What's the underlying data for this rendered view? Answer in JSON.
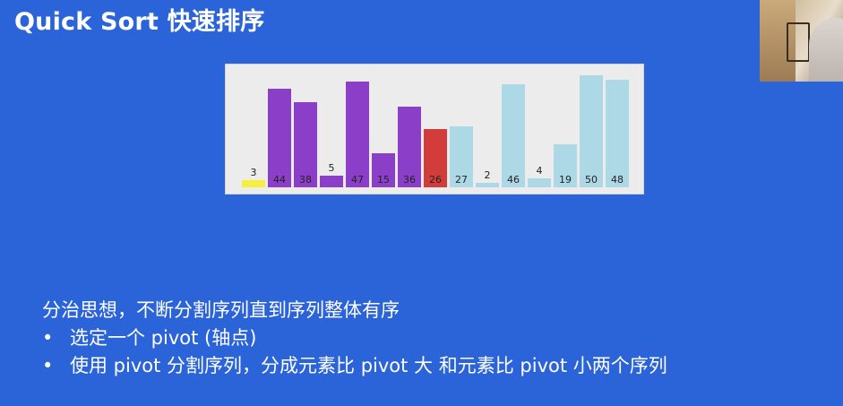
{
  "slide": {
    "title": "Quick Sort 快速排序"
  },
  "chart_data": {
    "type": "bar",
    "categories": [
      "3",
      "44",
      "38",
      "5",
      "47",
      "15",
      "36",
      "26",
      "27",
      "2",
      "46",
      "4",
      "19",
      "50",
      "48"
    ],
    "values": [
      3,
      44,
      38,
      5,
      47,
      15,
      36,
      26,
      27,
      2,
      46,
      4,
      19,
      50,
      48
    ],
    "bar_colors": [
      "#f7ef3e",
      "#8b3fc8",
      "#8b3fc8",
      "#8b3fc8",
      "#8b3fc8",
      "#8b3fc8",
      "#8b3fc8",
      "#d23d3b",
      "#add8e6",
      "#add8e6",
      "#add8e6",
      "#add8e6",
      "#add8e6",
      "#add8e6",
      "#add8e6"
    ],
    "ylim": [
      0,
      50
    ]
  },
  "notes": {
    "intro": "分治思想，不断分割序列直到序列整体有序",
    "bullets": [
      "选定一个 pivot (轴点)",
      "使用 pivot 分割序列，分成元素比 pivot 大 和元素比 pivot 小两个序列"
    ],
    "bullet_symbol": "•"
  },
  "colors": {
    "background": "#2b63d9",
    "text": "#ffffff"
  }
}
